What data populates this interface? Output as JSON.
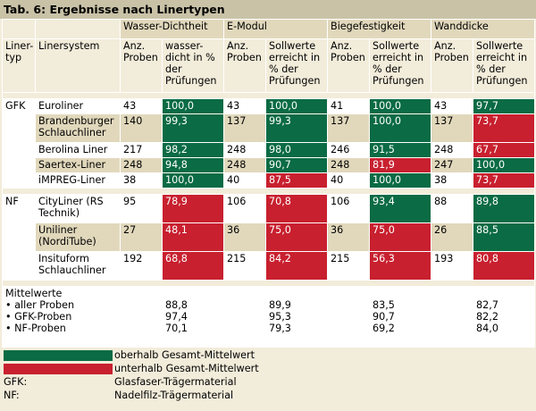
{
  "title": "Tab. 6: Ergebnisse nach Linertypen",
  "headers": {
    "liner_typ": "Liner-typ",
    "linersystem": "Linersystem",
    "groups": [
      "Wasser-Dichtheit",
      "E-Modul",
      "Biegefestigkeit",
      "Wanddicke"
    ],
    "anz_proben": "Anz. Proben",
    "wasser_sub": "wasser-dicht in % der Prüfungen",
    "soll_sub": "Sollwerte erreicht in % der Prüfungen"
  },
  "gfk": {
    "label": "GFK",
    "rows": [
      {
        "name": "Euroliner",
        "cells": [
          "43",
          "100,0",
          "43",
          "100,0",
          "41",
          "100,0",
          "43",
          "97,7"
        ]
      },
      {
        "name": "Brandenburger Schlauchliner",
        "cells": [
          "140",
          "99,3",
          "137",
          "99,3",
          "137",
          "100,0",
          "137",
          "73,7"
        ]
      },
      {
        "name": "Berolina Liner",
        "cells": [
          "217",
          "98,2",
          "248",
          "98,0",
          "246",
          "91,5",
          "248",
          "67,7"
        ]
      },
      {
        "name": "Saertex-Liner",
        "cells": [
          "248",
          "94,8",
          "248",
          "90,7",
          "248",
          "81,9",
          "247",
          "100,0"
        ]
      },
      {
        "name": "iMPREG-Liner",
        "cells": [
          "38",
          "100,0",
          "40",
          "87,5",
          "40",
          "100,0",
          "38",
          "73,7"
        ]
      }
    ]
  },
  "nf": {
    "label": "NF",
    "rows": [
      {
        "name": "CityLiner (RS Technik)",
        "cells": [
          "95",
          "78,9",
          "106",
          "70,8",
          "106",
          "93,4",
          "88",
          "89,8"
        ]
      },
      {
        "name": "Uniliner (NordiTube)",
        "cells": [
          "27",
          "48,1",
          "36",
          "75,0",
          "36",
          "75,0",
          "26",
          "88,5"
        ]
      },
      {
        "name": "Insituform Schlauchliner",
        "cells": [
          "192",
          "68,8",
          "215",
          "84,2",
          "215",
          "56,3",
          "193",
          "80,8"
        ]
      }
    ]
  },
  "mittelwerte": {
    "title": "Mittelwerte",
    "labels": [
      "• aller Proben",
      "• GFK-Proben",
      "• NF-Proben"
    ],
    "wasser": [
      "88,8",
      "97,4",
      "70,1"
    ],
    "emodul": [
      "89,9",
      "95,3",
      "79,3"
    ],
    "biege": [
      "83,5",
      "90,7",
      "69,2"
    ],
    "wand": [
      "82,7",
      "82,2",
      "84,0"
    ]
  },
  "legend": {
    "above": "oberhalb Gesamt-Mittelwert",
    "below": "unterhalb Gesamt-Mittelwert",
    "gfk_abbr": "GFK:",
    "gfk_desc": "Glasfaser-Trägermaterial",
    "nf_abbr": "NF:",
    "nf_desc": "Nadelfilz-Trägermaterial"
  },
  "colors": {
    "above": "#0a6b44",
    "below": "#c8202f",
    "header": "#e1d8bc",
    "title_bar": "#c9c2a7"
  }
}
